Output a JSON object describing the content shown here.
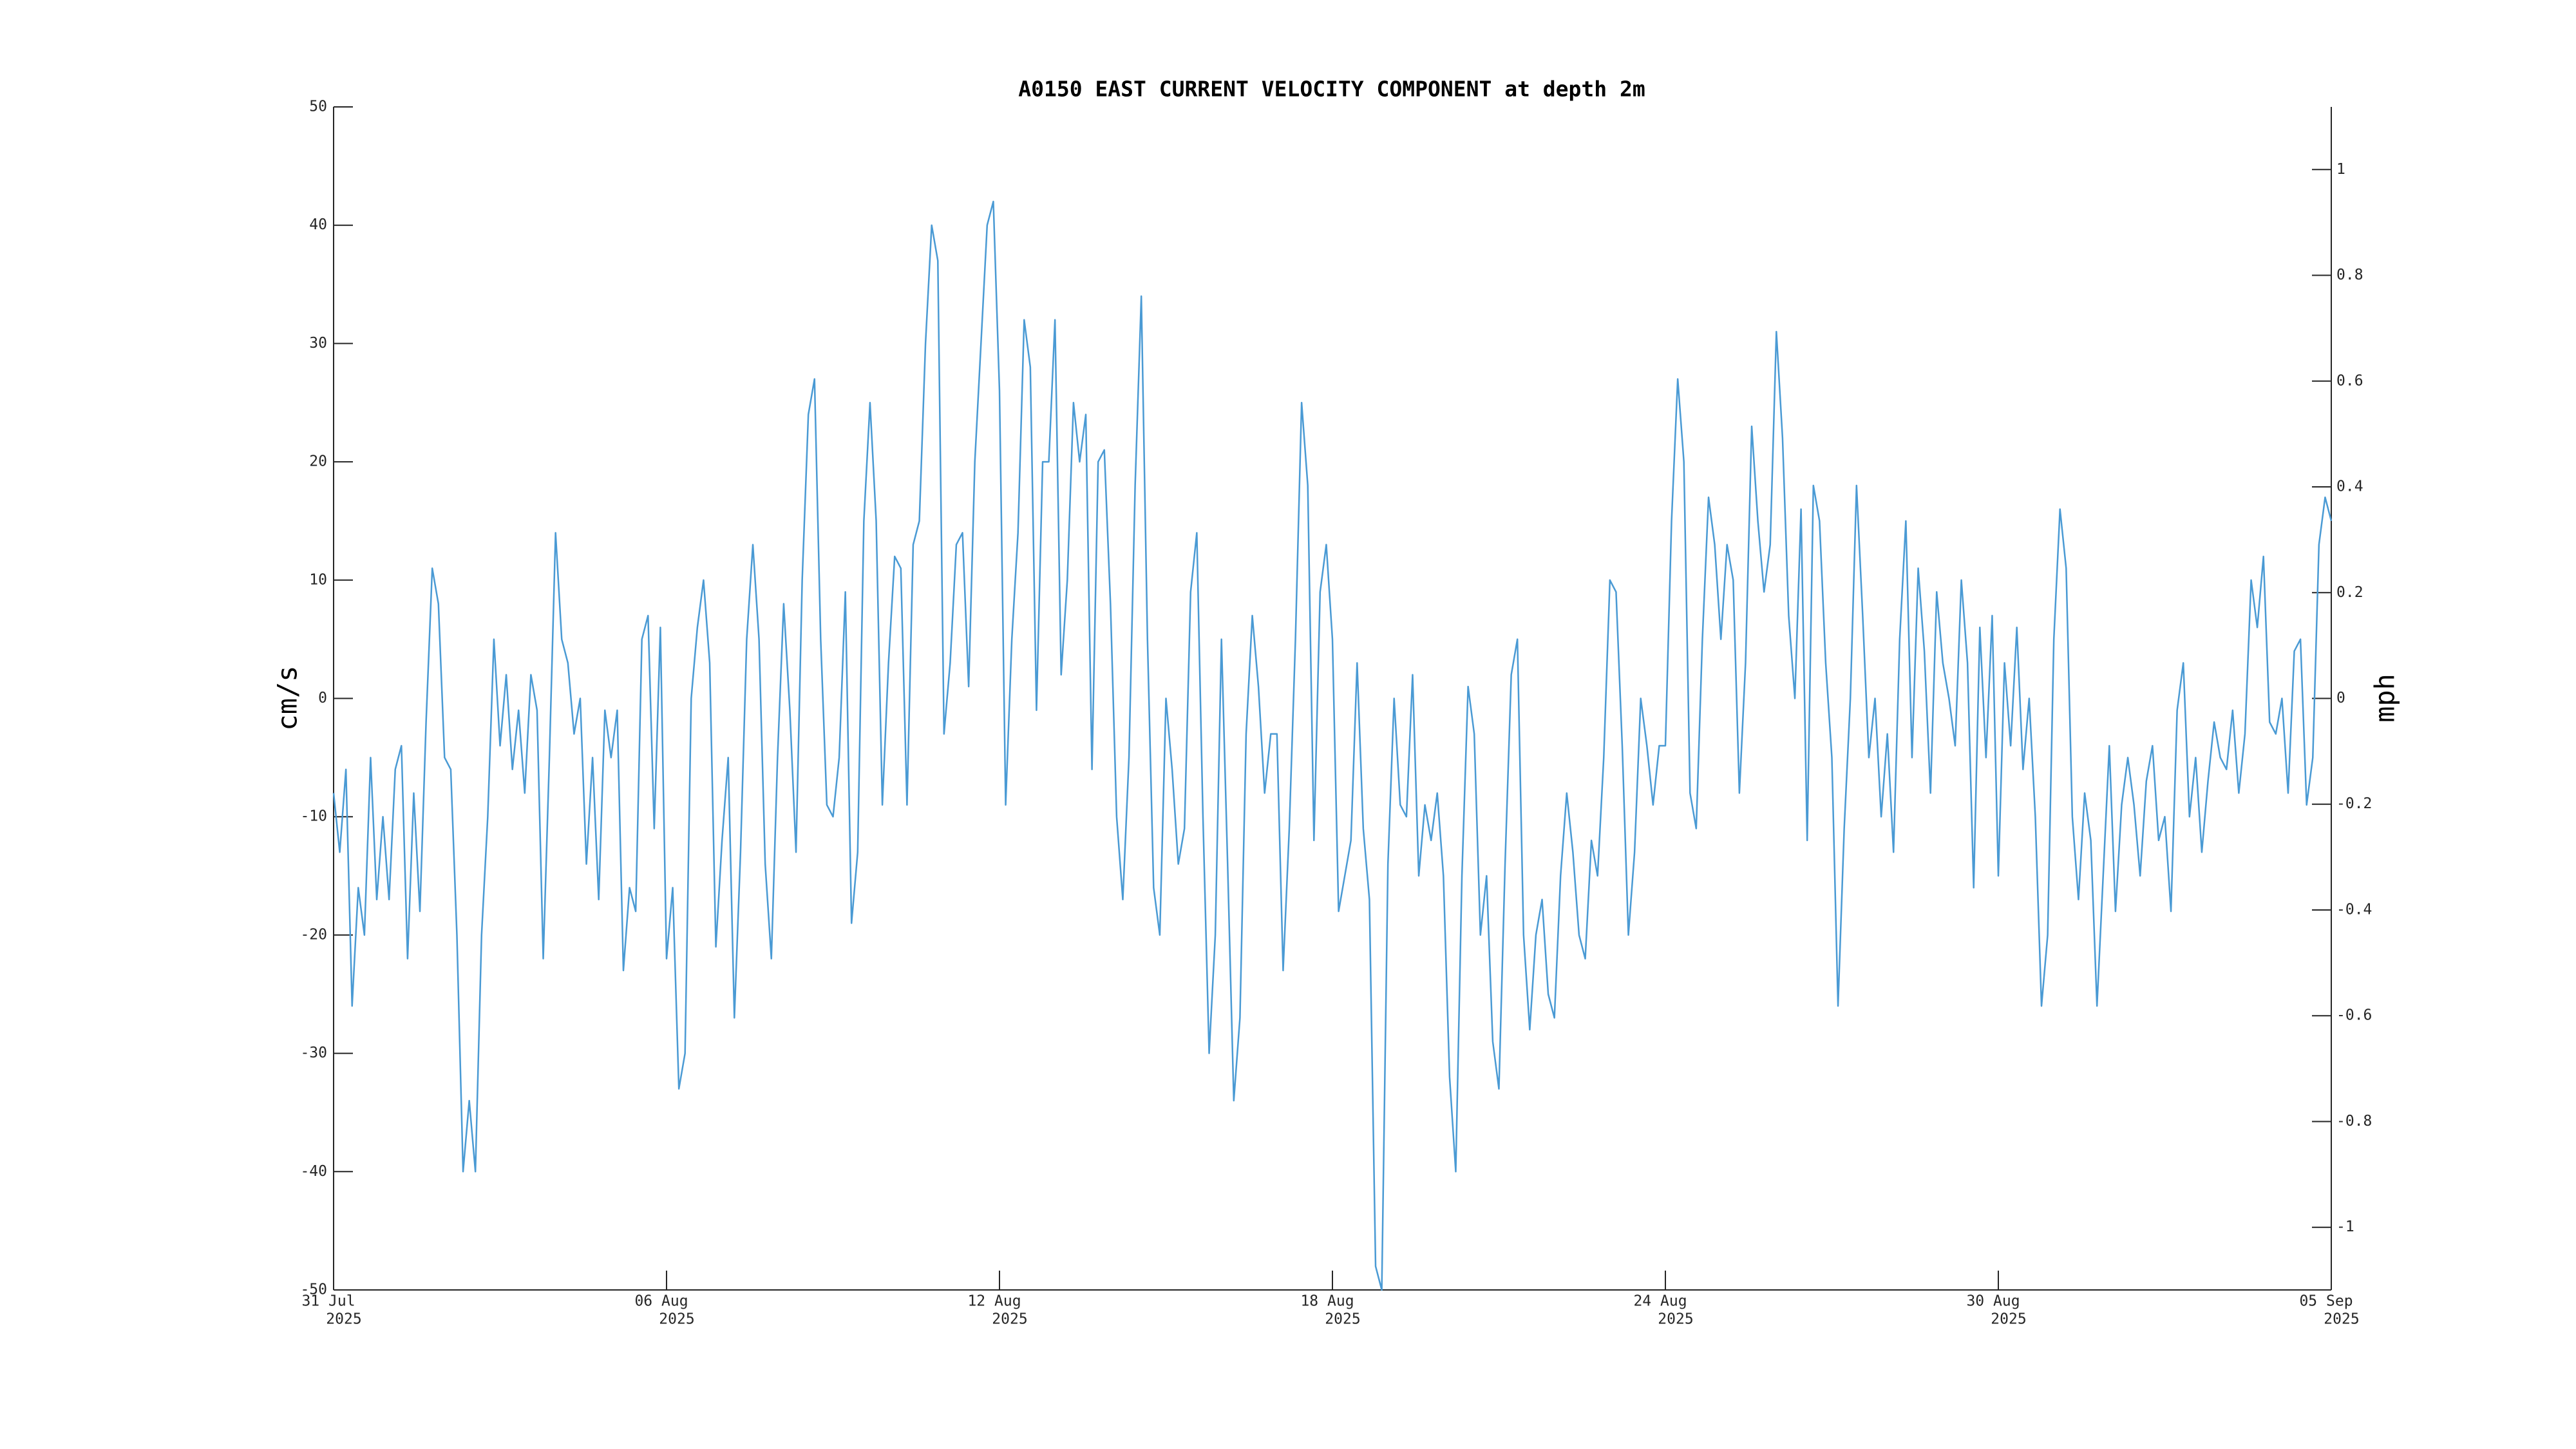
{
  "chart_data": {
    "type": "line",
    "title": "A0150 EAST CURRENT VELOCITY COMPONENT at depth 2m",
    "ylabel": "cm/s",
    "y2label": "mph",
    "color": "#4a9ad4",
    "xlim": [
      "2025-07-31",
      "2025-09-05"
    ],
    "xticks": [
      {
        "value": "2025-07-31",
        "label": [
          "31 Jul",
          "2025"
        ]
      },
      {
        "value": "2025-08-06",
        "label": [
          "06 Aug",
          "2025"
        ]
      },
      {
        "value": "2025-08-12",
        "label": [
          "12 Aug",
          "2025"
        ]
      },
      {
        "value": "2025-08-18",
        "label": [
          "18 Aug",
          "2025"
        ]
      },
      {
        "value": "2025-08-24",
        "label": [
          "24 Aug",
          "2025"
        ]
      },
      {
        "value": "2025-08-30",
        "label": [
          "30 Aug",
          "2025"
        ]
      },
      {
        "value": "2025-09-05",
        "label": [
          "05 Sep",
          "2025"
        ]
      }
    ],
    "ylim": [
      -50,
      50
    ],
    "yticks": [
      -50,
      -40,
      -30,
      -20,
      -10,
      0,
      10,
      20,
      30,
      40,
      50
    ],
    "y2lim": [
      -1.1185,
      1.1185
    ],
    "y2ticks": [
      -1,
      -0.8,
      -0.6,
      -0.4,
      -0.2,
      0,
      0.2,
      0.4,
      0.6,
      0.8,
      1
    ],
    "x": [
      "2025-07-31T00:00",
      "2025-07-31T02:40",
      "2025-07-31T05:20",
      "2025-07-31T08:00",
      "2025-07-31T10:40",
      "2025-07-31T13:20",
      "2025-07-31T16:00",
      "2025-07-31T18:40",
      "2025-07-31T21:20",
      "2025-08-01T00:00",
      "2025-08-01T02:40",
      "2025-08-01T05:20",
      "2025-08-01T08:00",
      "2025-08-01T10:40",
      "2025-08-01T13:20",
      "2025-08-01T16:00",
      "2025-08-01T18:40",
      "2025-08-01T21:20",
      "2025-08-02T00:00",
      "2025-08-02T02:40",
      "2025-08-02T05:20",
      "2025-08-02T08:00",
      "2025-08-02T10:40",
      "2025-08-02T13:20",
      "2025-08-02T16:00",
      "2025-08-02T18:40",
      "2025-08-02T21:20",
      "2025-08-03T00:00",
      "2025-08-03T02:40",
      "2025-08-03T05:20",
      "2025-08-03T08:00",
      "2025-08-03T10:40",
      "2025-08-03T13:20",
      "2025-08-03T16:00",
      "2025-08-03T18:40",
      "2025-08-03T21:20",
      "2025-08-04T00:00",
      "2025-08-04T02:40",
      "2025-08-04T05:20",
      "2025-08-04T08:00",
      "2025-08-04T10:40",
      "2025-08-04T13:20",
      "2025-08-04T16:00",
      "2025-08-04T18:40",
      "2025-08-04T21:20",
      "2025-08-05T00:00",
      "2025-08-05T02:40",
      "2025-08-05T05:20",
      "2025-08-05T08:00",
      "2025-08-05T10:40",
      "2025-08-05T13:20",
      "2025-08-05T16:00",
      "2025-08-05T18:40",
      "2025-08-05T21:20",
      "2025-08-06T00:00",
      "2025-08-06T02:40",
      "2025-08-06T05:20",
      "2025-08-06T08:00",
      "2025-08-06T10:40",
      "2025-08-06T13:20",
      "2025-08-06T16:00",
      "2025-08-06T18:40",
      "2025-08-06T21:20",
      "2025-08-07T00:00",
      "2025-08-07T02:40",
      "2025-08-07T05:20",
      "2025-08-07T08:00",
      "2025-08-07T10:40",
      "2025-08-07T13:20",
      "2025-08-07T16:00",
      "2025-08-07T18:40",
      "2025-08-07T21:20",
      "2025-08-08T00:00",
      "2025-08-08T02:40",
      "2025-08-08T05:20",
      "2025-08-08T08:00",
      "2025-08-08T10:40",
      "2025-08-08T13:20",
      "2025-08-08T16:00",
      "2025-08-08T18:40",
      "2025-08-08T21:20",
      "2025-08-09T00:00",
      "2025-08-09T02:40",
      "2025-08-09T05:20",
      "2025-08-09T08:00",
      "2025-08-09T10:40",
      "2025-08-09T13:20",
      "2025-08-09T16:00",
      "2025-08-09T18:40",
      "2025-08-09T21:20",
      "2025-08-10T00:00",
      "2025-08-10T02:40",
      "2025-08-10T05:20",
      "2025-08-10T08:00",
      "2025-08-10T10:40",
      "2025-08-10T13:20",
      "2025-08-10T16:00",
      "2025-08-10T18:40",
      "2025-08-10T21:20",
      "2025-08-11T00:00",
      "2025-08-11T02:40",
      "2025-08-11T05:20",
      "2025-08-11T08:00",
      "2025-08-11T10:40",
      "2025-08-11T13:20",
      "2025-08-11T16:00",
      "2025-08-11T18:40",
      "2025-08-11T21:20",
      "2025-08-12T00:00",
      "2025-08-12T02:40",
      "2025-08-12T05:20",
      "2025-08-12T08:00",
      "2025-08-12T10:40",
      "2025-08-12T13:20",
      "2025-08-12T16:00",
      "2025-08-12T18:40",
      "2025-08-12T21:20",
      "2025-08-13T00:00",
      "2025-08-13T02:40",
      "2025-08-13T05:20",
      "2025-08-13T08:00",
      "2025-08-13T10:40",
      "2025-08-13T13:20",
      "2025-08-13T16:00",
      "2025-08-13T18:40",
      "2025-08-13T21:20",
      "2025-08-14T00:00",
      "2025-08-14T02:40",
      "2025-08-14T05:20",
      "2025-08-14T08:00",
      "2025-08-14T10:40",
      "2025-08-14T13:20",
      "2025-08-14T16:00",
      "2025-08-14T18:40",
      "2025-08-14T21:20",
      "2025-08-15T00:00",
      "2025-08-15T02:40",
      "2025-08-15T05:20",
      "2025-08-15T08:00",
      "2025-08-15T10:40",
      "2025-08-15T13:20",
      "2025-08-15T16:00",
      "2025-08-15T18:40",
      "2025-08-15T21:20",
      "2025-08-16T00:00",
      "2025-08-16T02:40",
      "2025-08-16T05:20",
      "2025-08-16T08:00",
      "2025-08-16T10:40",
      "2025-08-16T13:20",
      "2025-08-16T16:00",
      "2025-08-16T18:40",
      "2025-08-16T21:20",
      "2025-08-17T00:00",
      "2025-08-17T02:40",
      "2025-08-17T05:20",
      "2025-08-17T08:00",
      "2025-08-17T10:40",
      "2025-08-17T13:20",
      "2025-08-17T16:00",
      "2025-08-17T18:40",
      "2025-08-17T21:20",
      "2025-08-18T00:00",
      "2025-08-18T02:40",
      "2025-08-18T05:20",
      "2025-08-18T08:00",
      "2025-08-18T10:40",
      "2025-08-18T13:20",
      "2025-08-18T16:00",
      "2025-08-18T18:40",
      "2025-08-18T21:20",
      "2025-08-19T00:00",
      "2025-08-19T02:40",
      "2025-08-19T05:20",
      "2025-08-19T08:00",
      "2025-08-19T10:40",
      "2025-08-19T13:20",
      "2025-08-19T16:00",
      "2025-08-19T18:40",
      "2025-08-19T21:20",
      "2025-08-20T00:00",
      "2025-08-20T02:40",
      "2025-08-20T05:20",
      "2025-08-20T08:00",
      "2025-08-20T10:40",
      "2025-08-20T13:20",
      "2025-08-20T16:00",
      "2025-08-20T18:40",
      "2025-08-20T21:20",
      "2025-08-21T00:00",
      "2025-08-21T02:40",
      "2025-08-21T05:20",
      "2025-08-21T08:00",
      "2025-08-21T10:40",
      "2025-08-21T13:20",
      "2025-08-21T16:00",
      "2025-08-21T18:40",
      "2025-08-21T21:20",
      "2025-08-22T00:00",
      "2025-08-22T02:40",
      "2025-08-22T05:20",
      "2025-08-22T08:00",
      "2025-08-22T10:40",
      "2025-08-22T13:20",
      "2025-08-22T16:00",
      "2025-08-22T18:40",
      "2025-08-22T21:20",
      "2025-08-23T00:00",
      "2025-08-23T02:40",
      "2025-08-23T05:20",
      "2025-08-23T08:00",
      "2025-08-23T10:40",
      "2025-08-23T13:20",
      "2025-08-23T16:00",
      "2025-08-23T18:40",
      "2025-08-23T21:20",
      "2025-08-24T00:00",
      "2025-08-24T02:40",
      "2025-08-24T05:20",
      "2025-08-24T08:00",
      "2025-08-24T10:40",
      "2025-08-24T13:20",
      "2025-08-24T16:00",
      "2025-08-24T18:40",
      "2025-08-24T21:20",
      "2025-08-25T00:00",
      "2025-08-25T02:40",
      "2025-08-25T05:20",
      "2025-08-25T08:00",
      "2025-08-25T10:40",
      "2025-08-25T13:20",
      "2025-08-25T16:00",
      "2025-08-25T18:40",
      "2025-08-25T21:20",
      "2025-08-26T00:00",
      "2025-08-26T02:40",
      "2025-08-26T05:20",
      "2025-08-26T08:00",
      "2025-08-26T10:40",
      "2025-08-26T13:20",
      "2025-08-26T16:00",
      "2025-08-26T18:40",
      "2025-08-26T21:20",
      "2025-08-27T00:00",
      "2025-08-27T02:40",
      "2025-08-27T05:20",
      "2025-08-27T08:00",
      "2025-08-27T10:40",
      "2025-08-27T13:20",
      "2025-08-27T16:00",
      "2025-08-27T18:40",
      "2025-08-27T21:20",
      "2025-08-28T00:00",
      "2025-08-28T02:40",
      "2025-08-28T05:20",
      "2025-08-28T08:00",
      "2025-08-28T10:40",
      "2025-08-28T13:20",
      "2025-08-28T16:00",
      "2025-08-28T18:40",
      "2025-08-28T21:20",
      "2025-08-29T00:00",
      "2025-08-29T02:40",
      "2025-08-29T05:20",
      "2025-08-29T08:00",
      "2025-08-29T10:40",
      "2025-08-29T13:20",
      "2025-08-29T16:00",
      "2025-08-29T18:40",
      "2025-08-29T21:20",
      "2025-08-30T00:00",
      "2025-08-30T02:40",
      "2025-08-30T05:20",
      "2025-08-30T08:00",
      "2025-08-30T10:40",
      "2025-08-30T13:20",
      "2025-08-30T16:00",
      "2025-08-30T18:40",
      "2025-08-30T21:20",
      "2025-08-31T00:00",
      "2025-08-31T02:40",
      "2025-08-31T05:20",
      "2025-08-31T08:00",
      "2025-08-31T10:40",
      "2025-08-31T13:20",
      "2025-08-31T16:00",
      "2025-08-31T18:40",
      "2025-08-31T21:20",
      "2025-09-01T00:00",
      "2025-09-01T02:40",
      "2025-09-01T05:20",
      "2025-09-01T08:00",
      "2025-09-01T10:40",
      "2025-09-01T13:20",
      "2025-09-01T16:00",
      "2025-09-01T18:40",
      "2025-09-01T21:20",
      "2025-09-02T00:00",
      "2025-09-02T02:40",
      "2025-09-02T05:20",
      "2025-09-02T08:00",
      "2025-09-02T10:40",
      "2025-09-02T13:20",
      "2025-09-02T16:00",
      "2025-09-02T18:40",
      "2025-09-02T21:20",
      "2025-09-03T00:00",
      "2025-09-03T02:40",
      "2025-09-03T05:20",
      "2025-09-03T08:00",
      "2025-09-03T10:40",
      "2025-09-03T13:20",
      "2025-09-03T16:00",
      "2025-09-03T18:40",
      "2025-09-03T21:20",
      "2025-09-04T00:00",
      "2025-09-04T02:40",
      "2025-09-04T05:20",
      "2025-09-04T08:00",
      "2025-09-04T10:40",
      "2025-09-04T13:20",
      "2025-09-04T16:00",
      "2025-09-04T18:40",
      "2025-09-04T21:20",
      "2025-09-05T00:00"
    ],
    "values": [
      -8,
      -13,
      -6,
      -26,
      -16,
      -20,
      -5,
      -17,
      -10,
      -17,
      -6,
      -4,
      -22,
      -8,
      -18,
      -2,
      11,
      8,
      -5,
      -6,
      -20,
      -40,
      -34,
      -40,
      -20,
      -10,
      5,
      -4,
      2,
      -6,
      -1,
      -8,
      2,
      -1,
      -22,
      -5,
      14,
      5,
      3,
      -3,
      0,
      -14,
      -5,
      -17,
      -1,
      -5,
      -1,
      -23,
      -16,
      -18,
      5,
      7,
      -11,
      6,
      -22,
      -16,
      -33,
      -30,
      0,
      6,
      10,
      3,
      -21,
      -12,
      -5,
      -27,
      -13,
      5,
      13,
      5,
      -14,
      -22,
      -5,
      8,
      -1,
      -13,
      10,
      24,
      27,
      5,
      -9,
      -10,
      -5,
      9,
      -19,
      -13,
      15,
      25,
      15,
      -9,
      3,
      12,
      11,
      -9,
      13,
      15,
      30,
      40,
      37,
      -3,
      3,
      13,
      14,
      1,
      20,
      30,
      40,
      42,
      26,
      -9,
      5,
      14,
      32,
      28,
      -1,
      20,
      20,
      32,
      2,
      10,
      25,
      20,
      24,
      -6,
      20,
      21,
      8,
      -10,
      -17,
      -5,
      18,
      34,
      5,
      -16,
      -20,
      0,
      -6,
      -14,
      -11,
      9,
      14,
      -10,
      -30,
      -20,
      5,
      -14,
      -34,
      -27,
      -3,
      7,
      1,
      -8,
      -3,
      -3,
      -23,
      -11,
      5,
      25,
      18,
      -12,
      9,
      13,
      5,
      -18,
      -15,
      -12,
      3,
      -11,
      -17,
      -48,
      -50,
      -14,
      0,
      -9,
      -10,
      2,
      -15,
      -9,
      -12,
      -8,
      -15,
      -32,
      -40,
      -15,
      1,
      -3,
      -20,
      -15,
      -29,
      -33,
      -14,
      2,
      5,
      -20,
      -28,
      -20,
      -17,
      -25,
      -27,
      -15,
      -8,
      -13,
      -20,
      -22,
      -12,
      -15,
      -5,
      10,
      9,
      -4,
      -20,
      -13,
      0,
      -4,
      -9,
      -4,
      -4,
      15,
      27,
      20,
      -8,
      -11,
      5,
      17,
      13,
      5,
      13,
      10,
      -8,
      3,
      23,
      15,
      9,
      13,
      31,
      22,
      7,
      0,
      16,
      -12,
      18,
      15,
      3,
      -5,
      -26,
      -11,
      0,
      18,
      7,
      -5,
      0,
      -10,
      -3,
      -13,
      5,
      15,
      -5,
      11,
      4,
      -8,
      9,
      3,
      0,
      -4,
      10,
      3,
      -16,
      6,
      -5,
      7,
      -15,
      3,
      -4,
      6,
      -6,
      0,
      -10,
      -26,
      -20,
      5,
      16,
      11,
      -10,
      -17,
      -8,
      -12,
      -26,
      -15,
      -4,
      -18,
      -9,
      -5,
      -9,
      -15,
      -7,
      -4,
      -12,
      -10,
      -18,
      -1,
      3,
      -10,
      -5,
      -13,
      -7,
      -2,
      -5,
      -6,
      -1,
      -8,
      -3,
      10,
      6,
      12,
      -2,
      -3,
      0,
      -8,
      4,
      5,
      -9,
      -5,
      13,
      17,
      15
    ]
  }
}
